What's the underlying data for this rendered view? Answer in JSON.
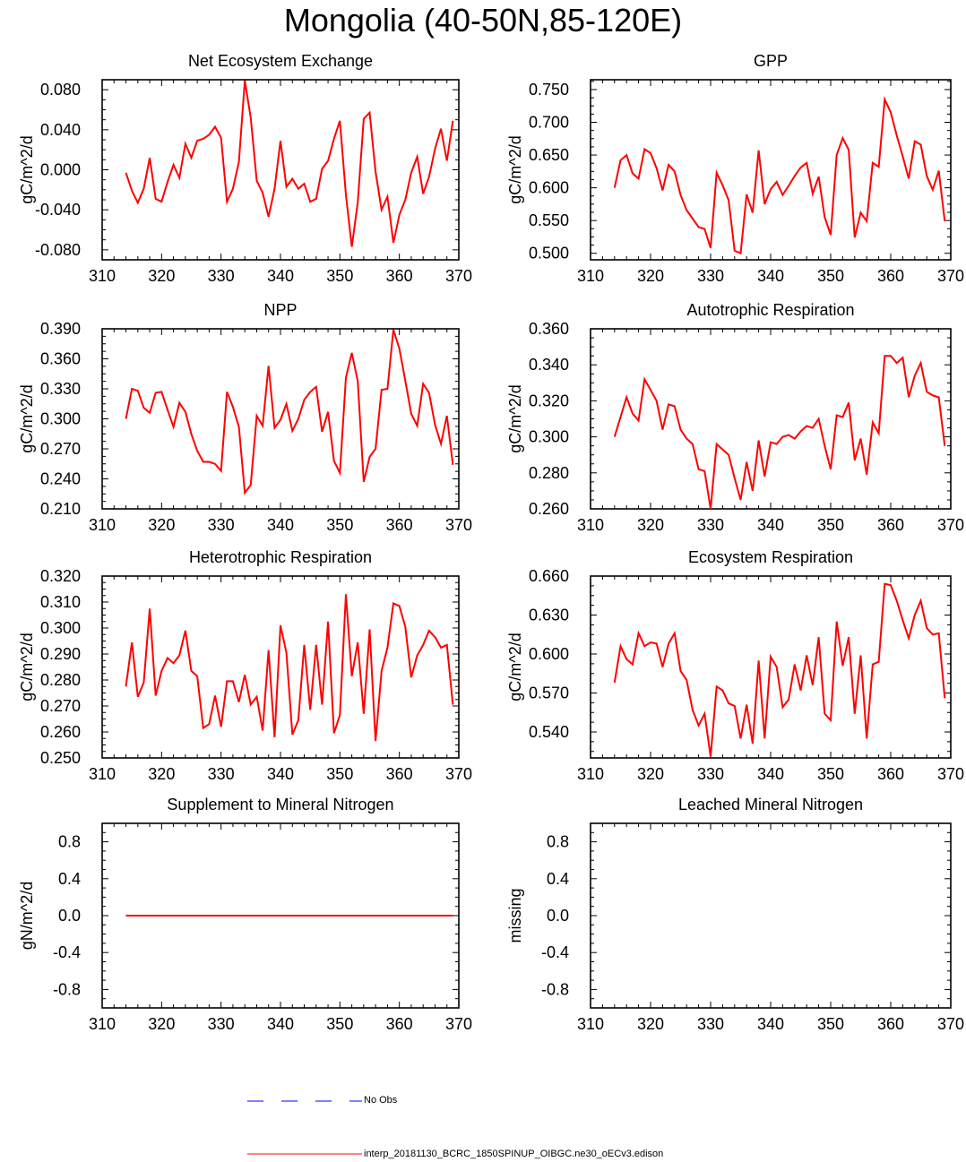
{
  "title": "Mongolia (40-50N,85-120E)",
  "colors": {
    "model": "#ff0000",
    "obs": "#0000ff",
    "axis": "#000000"
  },
  "legend": {
    "obs_label": "No Obs",
    "model_label": "interp_20181130_BCRC_1850SPINUP_OIBGC.ne30_oECv3.edison"
  },
  "chart_data": [
    {
      "type": "line",
      "title": "Net Ecosystem Exchange",
      "ylabel": "gC/m^2/d",
      "xlabel": "",
      "xlim": [
        310,
        370
      ],
      "ylim": [
        -0.09,
        0.09
      ],
      "xticks": [
        "310",
        "320",
        "330",
        "340",
        "350",
        "360",
        "370"
      ],
      "yticks": [
        -0.08,
        -0.04,
        0.0,
        0.04,
        0.08
      ],
      "ytick_labels": [
        "-0.080",
        "-0.040",
        "0.000",
        "0.040",
        "0.080"
      ],
      "series": [
        {
          "name": "interp_20181130_BCRC_1850SPINUP_OIBGC.ne30_oECv3.edison",
          "x": [
            314,
            315,
            316,
            317,
            318,
            319,
            320,
            321,
            322,
            323,
            324,
            325,
            326,
            327,
            328,
            329,
            330,
            331,
            332,
            333,
            334,
            335,
            336,
            337,
            338,
            339,
            340,
            341,
            342,
            343,
            344,
            345,
            346,
            347,
            348,
            349,
            350,
            351,
            352,
            353,
            354,
            355,
            356,
            357,
            358,
            359,
            360,
            361,
            362,
            363,
            364,
            365,
            366,
            367,
            368,
            369
          ],
          "values": [
            -0.003,
            -0.021,
            -0.033,
            -0.019,
            0.012,
            -0.029,
            -0.032,
            -0.012,
            0.005,
            -0.008,
            0.026,
            0.012,
            0.029,
            0.031,
            0.035,
            0.043,
            0.032,
            -0.032,
            -0.019,
            0.008,
            0.089,
            0.052,
            -0.011,
            -0.023,
            -0.047,
            -0.019,
            0.029,
            -0.017,
            -0.009,
            -0.019,
            -0.014,
            -0.032,
            -0.029,
            0.001,
            0.009,
            0.031,
            0.049,
            -0.025,
            -0.077,
            -0.033,
            0.051,
            0.057,
            -0.002,
            -0.04,
            -0.027,
            -0.073,
            -0.045,
            -0.03,
            -0.003,
            0.013,
            -0.024,
            -0.007,
            0.021,
            0.041,
            0.009,
            0.049
          ]
        }
      ]
    },
    {
      "type": "line",
      "title": "GPP",
      "ylabel": "gC/m^2/d",
      "xlabel": "",
      "xlim": [
        310,
        370
      ],
      "ylim": [
        0.49,
        0.765
      ],
      "xticks": [
        "310",
        "320",
        "330",
        "340",
        "350",
        "360",
        "370"
      ],
      "yticks": [
        0.5,
        0.55,
        0.6,
        0.65,
        0.7,
        0.75
      ],
      "ytick_labels": [
        "0.500",
        "0.550",
        "0.600",
        "0.650",
        "0.700",
        "0.750"
      ],
      "series": [
        {
          "name": "interp_20181130_BCRC_1850SPINUP_OIBGC.ne30_oECv3.edison",
          "x": [
            314,
            315,
            316,
            317,
            318,
            319,
            320,
            321,
            322,
            323,
            324,
            325,
            326,
            327,
            328,
            329,
            330,
            331,
            332,
            333,
            334,
            335,
            336,
            337,
            338,
            339,
            340,
            341,
            342,
            343,
            344,
            345,
            346,
            347,
            348,
            349,
            350,
            351,
            352,
            353,
            354,
            355,
            356,
            357,
            358,
            359,
            360,
            361,
            362,
            363,
            364,
            365,
            366,
            367,
            368,
            369
          ],
          "values": [
            0.6,
            0.642,
            0.65,
            0.622,
            0.614,
            0.659,
            0.653,
            0.63,
            0.596,
            0.635,
            0.625,
            0.589,
            0.566,
            0.553,
            0.54,
            0.537,
            0.508,
            0.623,
            0.604,
            0.581,
            0.504,
            0.5,
            0.59,
            0.562,
            0.657,
            0.575,
            0.598,
            0.609,
            0.589,
            0.603,
            0.618,
            0.631,
            0.638,
            0.591,
            0.617,
            0.555,
            0.528,
            0.65,
            0.676,
            0.658,
            0.524,
            0.562,
            0.549,
            0.638,
            0.632,
            0.735,
            0.715,
            0.68,
            0.648,
            0.614,
            0.671,
            0.666,
            0.618,
            0.597,
            0.626,
            0.549
          ]
        }
      ]
    },
    {
      "type": "line",
      "title": "NPP",
      "ylabel": "gC/m^2/d",
      "xlabel": "",
      "xlim": [
        310,
        370
      ],
      "ylim": [
        0.21,
        0.39
      ],
      "xticks": [
        "310",
        "320",
        "330",
        "340",
        "350",
        "360",
        "370"
      ],
      "yticks": [
        0.21,
        0.24,
        0.27,
        0.3,
        0.33,
        0.36,
        0.39
      ],
      "ytick_labels": [
        "0.210",
        "0.240",
        "0.270",
        "0.300",
        "0.330",
        "0.360",
        "0.390"
      ],
      "series": [
        {
          "name": "interp_20181130_BCRC_1850SPINUP_OIBGC.ne30_oECv3.edison",
          "x": [
            314,
            315,
            316,
            317,
            318,
            319,
            320,
            321,
            322,
            323,
            324,
            325,
            326,
            327,
            328,
            329,
            330,
            331,
            332,
            333,
            334,
            335,
            336,
            337,
            338,
            339,
            340,
            341,
            342,
            343,
            344,
            345,
            346,
            347,
            348,
            349,
            350,
            351,
            352,
            353,
            354,
            355,
            356,
            357,
            358,
            359,
            360,
            361,
            362,
            363,
            364,
            365,
            366,
            367,
            368,
            369
          ],
          "values": [
            0.3,
            0.33,
            0.328,
            0.311,
            0.306,
            0.326,
            0.327,
            0.309,
            0.292,
            0.316,
            0.307,
            0.285,
            0.268,
            0.257,
            0.257,
            0.255,
            0.248,
            0.327,
            0.312,
            0.292,
            0.226,
            0.234,
            0.303,
            0.293,
            0.353,
            0.291,
            0.299,
            0.315,
            0.288,
            0.3,
            0.319,
            0.327,
            0.332,
            0.287,
            0.307,
            0.258,
            0.246,
            0.341,
            0.366,
            0.338,
            0.237,
            0.262,
            0.27,
            0.329,
            0.33,
            0.389,
            0.37,
            0.338,
            0.305,
            0.293,
            0.335,
            0.326,
            0.294,
            0.275,
            0.303,
            0.254
          ]
        }
      ]
    },
    {
      "type": "line",
      "title": "Autotrophic Respiration",
      "ylabel": "gC/m^2/d",
      "xlabel": "",
      "xlim": [
        310,
        370
      ],
      "ylim": [
        0.26,
        0.36
      ],
      "xticks": [
        "310",
        "320",
        "330",
        "340",
        "350",
        "360",
        "370"
      ],
      "yticks": [
        0.26,
        0.28,
        0.3,
        0.32,
        0.34,
        0.36
      ],
      "ytick_labels": [
        "0.260",
        "0.280",
        "0.300",
        "0.320",
        "0.340",
        "0.360"
      ],
      "series": [
        {
          "name": "interp_20181130_BCRC_1850SPINUP_OIBGC.ne30_oECv3.edison",
          "x": [
            314,
            315,
            316,
            317,
            318,
            319,
            320,
            321,
            322,
            323,
            324,
            325,
            326,
            327,
            328,
            329,
            330,
            331,
            332,
            333,
            334,
            335,
            336,
            337,
            338,
            339,
            340,
            341,
            342,
            343,
            344,
            345,
            346,
            347,
            348,
            349,
            350,
            351,
            352,
            353,
            354,
            355,
            356,
            357,
            358,
            359,
            360,
            361,
            362,
            363,
            364,
            365,
            366,
            367,
            368,
            369
          ],
          "values": [
            0.3,
            0.311,
            0.322,
            0.313,
            0.309,
            0.332,
            0.326,
            0.32,
            0.304,
            0.318,
            0.317,
            0.304,
            0.299,
            0.296,
            0.282,
            0.281,
            0.26,
            0.296,
            0.293,
            0.29,
            0.277,
            0.265,
            0.286,
            0.27,
            0.298,
            0.278,
            0.297,
            0.296,
            0.3,
            0.301,
            0.299,
            0.303,
            0.306,
            0.305,
            0.31,
            0.295,
            0.282,
            0.312,
            0.311,
            0.319,
            0.287,
            0.299,
            0.279,
            0.308,
            0.302,
            0.345,
            0.345,
            0.341,
            0.344,
            0.322,
            0.334,
            0.341,
            0.325,
            0.323,
            0.322,
            0.295
          ]
        }
      ]
    },
    {
      "type": "line",
      "title": "Heterotrophic Respiration",
      "ylabel": "gC/m^2/d",
      "xlabel": "",
      "xlim": [
        310,
        370
      ],
      "ylim": [
        0.25,
        0.32
      ],
      "xticks": [
        "310",
        "320",
        "330",
        "340",
        "350",
        "360",
        "370"
      ],
      "yticks": [
        0.25,
        0.26,
        0.27,
        0.28,
        0.29,
        0.3,
        0.31,
        0.32
      ],
      "ytick_labels": [
        "0.250",
        "0.260",
        "0.270",
        "0.280",
        "0.290",
        "0.300",
        "0.310",
        "0.320"
      ],
      "series": [
        {
          "name": "interp_20181130_BCRC_1850SPINUP_OIBGC.ne30_oECv3.edison",
          "x": [
            314,
            315,
            316,
            317,
            318,
            319,
            320,
            321,
            322,
            323,
            324,
            325,
            326,
            327,
            328,
            329,
            330,
            331,
            332,
            333,
            334,
            335,
            336,
            337,
            338,
            339,
            340,
            341,
            342,
            343,
            344,
            345,
            346,
            347,
            348,
            349,
            350,
            351,
            352,
            353,
            354,
            355,
            356,
            357,
            358,
            359,
            360,
            361,
            362,
            363,
            364,
            365,
            366,
            367,
            368,
            369
          ],
          "values": [
            0.2775,
            0.2945,
            0.2735,
            0.279,
            0.3075,
            0.274,
            0.2835,
            0.2885,
            0.2865,
            0.2895,
            0.299,
            0.2835,
            0.2815,
            0.2615,
            0.263,
            0.274,
            0.262,
            0.2795,
            0.2795,
            0.2715,
            0.282,
            0.2705,
            0.2735,
            0.2605,
            0.2915,
            0.258,
            0.301,
            0.2905,
            0.259,
            0.2645,
            0.2935,
            0.2685,
            0.2935,
            0.2705,
            0.3025,
            0.2595,
            0.2665,
            0.313,
            0.2815,
            0.2945,
            0.267,
            0.2995,
            0.2565,
            0.2835,
            0.2925,
            0.3095,
            0.3085,
            0.3005,
            0.281,
            0.2895,
            0.2935,
            0.299,
            0.2965,
            0.2925,
            0.2935,
            0.2705
          ]
        }
      ]
    },
    {
      "type": "line",
      "title": "Ecosystem Respiration",
      "ylabel": "gC/m^2/d",
      "xlabel": "",
      "xlim": [
        310,
        370
      ],
      "ylim": [
        0.52,
        0.66
      ],
      "xticks": [
        "310",
        "320",
        "330",
        "340",
        "350",
        "360",
        "370"
      ],
      "yticks": [
        0.54,
        0.57,
        0.6,
        0.63,
        0.66
      ],
      "ytick_labels": [
        "0.540",
        "0.570",
        "0.600",
        "0.630",
        "0.660"
      ],
      "series": [
        {
          "name": "interp_20181130_BCRC_1850SPINUP_OIBGC.ne30_oECv3.edison",
          "x": [
            314,
            315,
            316,
            317,
            318,
            319,
            320,
            321,
            322,
            323,
            324,
            325,
            326,
            327,
            328,
            329,
            330,
            331,
            332,
            333,
            334,
            335,
            336,
            337,
            338,
            339,
            340,
            341,
            342,
            343,
            344,
            345,
            346,
            347,
            348,
            349,
            350,
            351,
            352,
            353,
            354,
            355,
            356,
            357,
            358,
            359,
            360,
            361,
            362,
            363,
            364,
            365,
            366,
            367,
            368,
            369
          ],
          "values": [
            0.578,
            0.606,
            0.596,
            0.592,
            0.616,
            0.606,
            0.609,
            0.608,
            0.59,
            0.608,
            0.616,
            0.587,
            0.58,
            0.557,
            0.545,
            0.554,
            0.521,
            0.575,
            0.572,
            0.562,
            0.56,
            0.535,
            0.561,
            0.531,
            0.595,
            0.535,
            0.598,
            0.59,
            0.559,
            0.565,
            0.592,
            0.572,
            0.599,
            0.576,
            0.613,
            0.554,
            0.549,
            0.625,
            0.591,
            0.613,
            0.554,
            0.599,
            0.535,
            0.592,
            0.594,
            0.654,
            0.653,
            0.641,
            0.626,
            0.612,
            0.63,
            0.641,
            0.62,
            0.615,
            0.616,
            0.566
          ]
        }
      ]
    },
    {
      "type": "line",
      "title": "Supplement to Mineral Nitrogen",
      "ylabel": "gN/m^2/d",
      "xlabel": "",
      "xlim": [
        310,
        370
      ],
      "ylim": [
        -1.0,
        1.0
      ],
      "xticks": [
        "310",
        "320",
        "330",
        "340",
        "350",
        "360",
        "370"
      ],
      "yticks": [
        -0.8,
        -0.4,
        0.0,
        0.4,
        0.8
      ],
      "ytick_labels": [
        "-0.8",
        "-0.4",
        "0.0",
        "0.4",
        "0.8"
      ],
      "series": [
        {
          "name": "interp_20181130_BCRC_1850SPINUP_OIBGC.ne30_oECv3.edison",
          "x": [
            314,
            369
          ],
          "values": [
            0.0,
            0.0
          ]
        }
      ]
    },
    {
      "type": "line",
      "title": "Leached Mineral Nitrogen",
      "ylabel": "missing",
      "xlabel": "",
      "xlim": [
        310,
        370
      ],
      "ylim": [
        -1.0,
        1.0
      ],
      "xticks": [
        "310",
        "320",
        "330",
        "340",
        "350",
        "360",
        "370"
      ],
      "yticks": [
        -0.8,
        -0.4,
        0.0,
        0.4,
        0.8
      ],
      "ytick_labels": [
        "-0.8",
        "-0.4",
        "0.0",
        "0.4",
        "0.8"
      ],
      "series": []
    }
  ]
}
